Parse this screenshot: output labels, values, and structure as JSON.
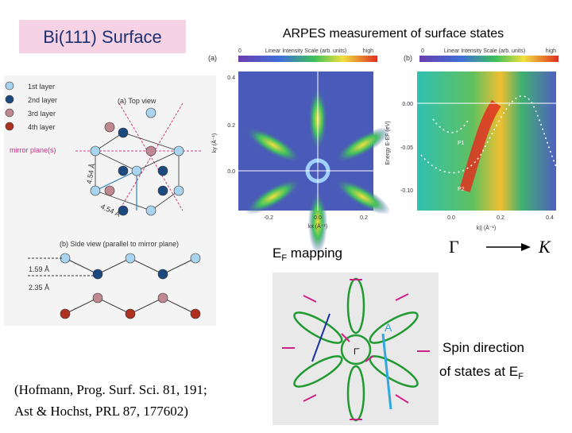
{
  "title": "Bi(111) Surface",
  "heading": "ARPES measurement of surface states",
  "ef_mapping": {
    "main": "E",
    "sub": "F",
    "rest": " mapping"
  },
  "direction": {
    "from": "Γ",
    "to": "K"
  },
  "spin_caption": {
    "line1": "Spin direction",
    "line2": "of states at E",
    "sub": "F"
  },
  "citation": {
    "line1": "(Hofmann, Prog. Surf. Sci. 81, 191;",
    "line2": "Ast & Hochst, PRL 87, 177602)"
  },
  "structure_figure": {
    "legend": [
      "1st layer",
      "2nd layer",
      "3rd layer",
      "4th layer"
    ],
    "top_view": "(a) Top view",
    "mirror": "mirror plane(s)",
    "lattice_label_1": "4.54 Å",
    "lattice_label_2": "4.54 Å",
    "side_view": "(b) Side view (parallel to mirror plane)",
    "spacing_1": "1.59 Å",
    "spacing_2": "2.35 Å"
  },
  "arpes_figure": {
    "panel_a": {
      "label": "(a)",
      "scale": "Linear Intensity Scale (arb. units)",
      "scale_min": "0",
      "scale_max": "high",
      "y_label": "ky (Å⁻¹)",
      "x_label": "kx (Å⁻¹)",
      "yticks": [
        "0.4",
        "0.2",
        "0.0"
      ],
      "xticks": [
        "-0.2",
        "0.0",
        "0.2"
      ]
    },
    "panel_b": {
      "label": "(b)",
      "scale_min": "0",
      "scale": "Linear Intensity Scale (arb. units)",
      "scale_max": "high",
      "y_label": "Energy E-EF (eV)",
      "yticks": [
        "0.00",
        "-0.05",
        "-0.10"
      ],
      "xticks": [
        "0.0",
        "0.2",
        "0.4"
      ],
      "x_label": "k|| (Å⁻¹)",
      "peaks": [
        "P1",
        "P2"
      ]
    }
  },
  "spin_figure": {
    "gamma": "Γ̄",
    "a": "A"
  }
}
